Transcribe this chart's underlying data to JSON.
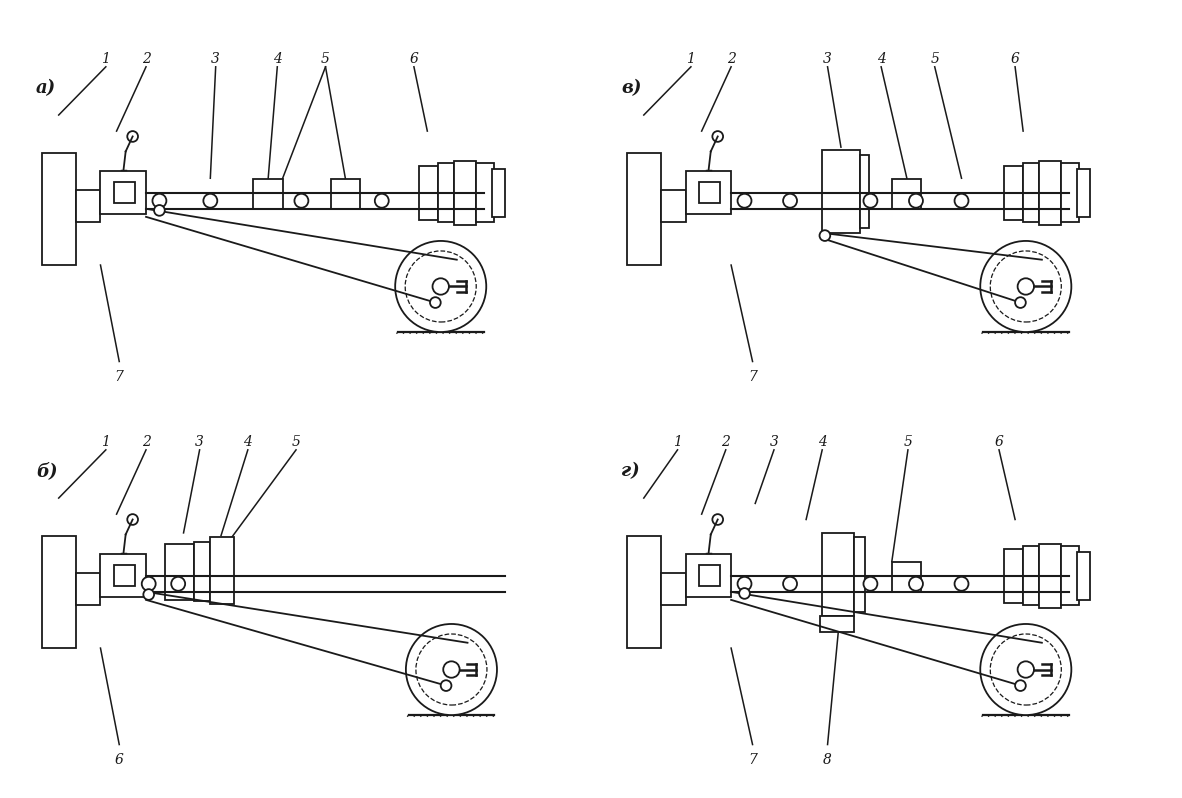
{
  "background_color": "#ffffff",
  "line_color": "#1a1a1a",
  "line_width": 1.3,
  "figsize": [
    11.82,
    7.98
  ],
  "panels": {
    "a_label": "а)",
    "b_label": "б)",
    "v_label": "в)",
    "g_label": "г)"
  }
}
